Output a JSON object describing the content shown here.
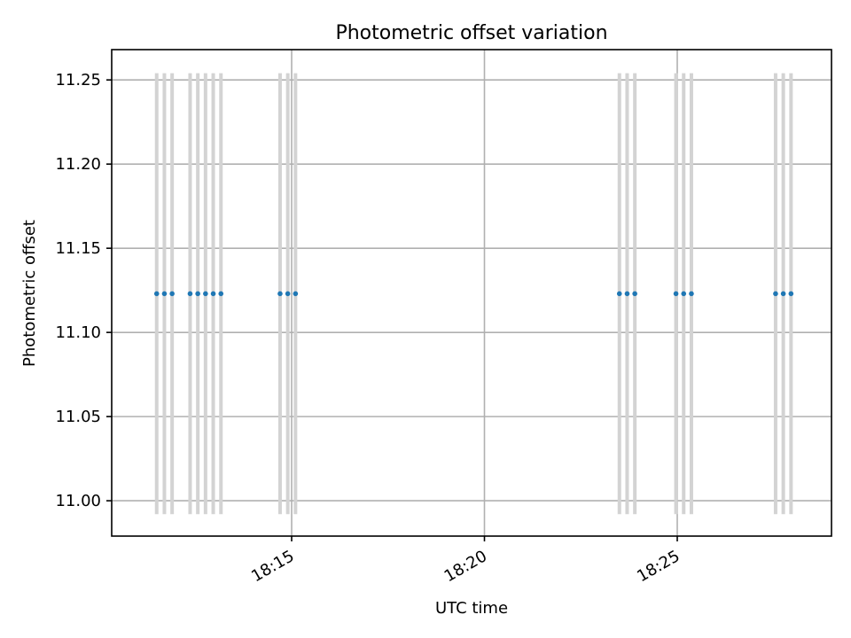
{
  "chart_data": {
    "type": "scatter",
    "title": "Photometric offset variation",
    "xlabel": "UTC time",
    "ylabel": "Photometric offset",
    "x_ticks": [
      "18:15",
      "18:20",
      "18:25"
    ],
    "y_ticks": [
      "11.00",
      "11.05",
      "11.10",
      "11.15",
      "11.20",
      "11.25"
    ],
    "x": [
      "18:11:30",
      "18:11:42",
      "18:11:54",
      "18:12:22",
      "18:12:34",
      "18:12:46",
      "18:12:58",
      "18:13:10",
      "18:14:42",
      "18:14:54",
      "18:15:06",
      "18:23:30",
      "18:23:42",
      "18:23:54",
      "18:24:58",
      "18:25:10",
      "18:25:22",
      "18:27:33",
      "18:27:45",
      "18:27:57"
    ],
    "y": [
      11.123,
      11.123,
      11.123,
      11.123,
      11.123,
      11.123,
      11.123,
      11.123,
      11.123,
      11.123,
      11.123,
      11.123,
      11.123,
      11.123,
      11.123,
      11.123,
      11.123,
      11.123,
      11.123,
      11.123
    ],
    "yerr_low": 10.992,
    "yerr_high": 11.254,
    "xlim": [
      "18:10:20",
      "18:29:00"
    ],
    "ylim": [
      10.979,
      11.268
    ],
    "grid": true,
    "colors": {
      "points": "#1f77b4",
      "errorbars": "#d3d3d3",
      "grid": "#b0b0b0"
    }
  }
}
